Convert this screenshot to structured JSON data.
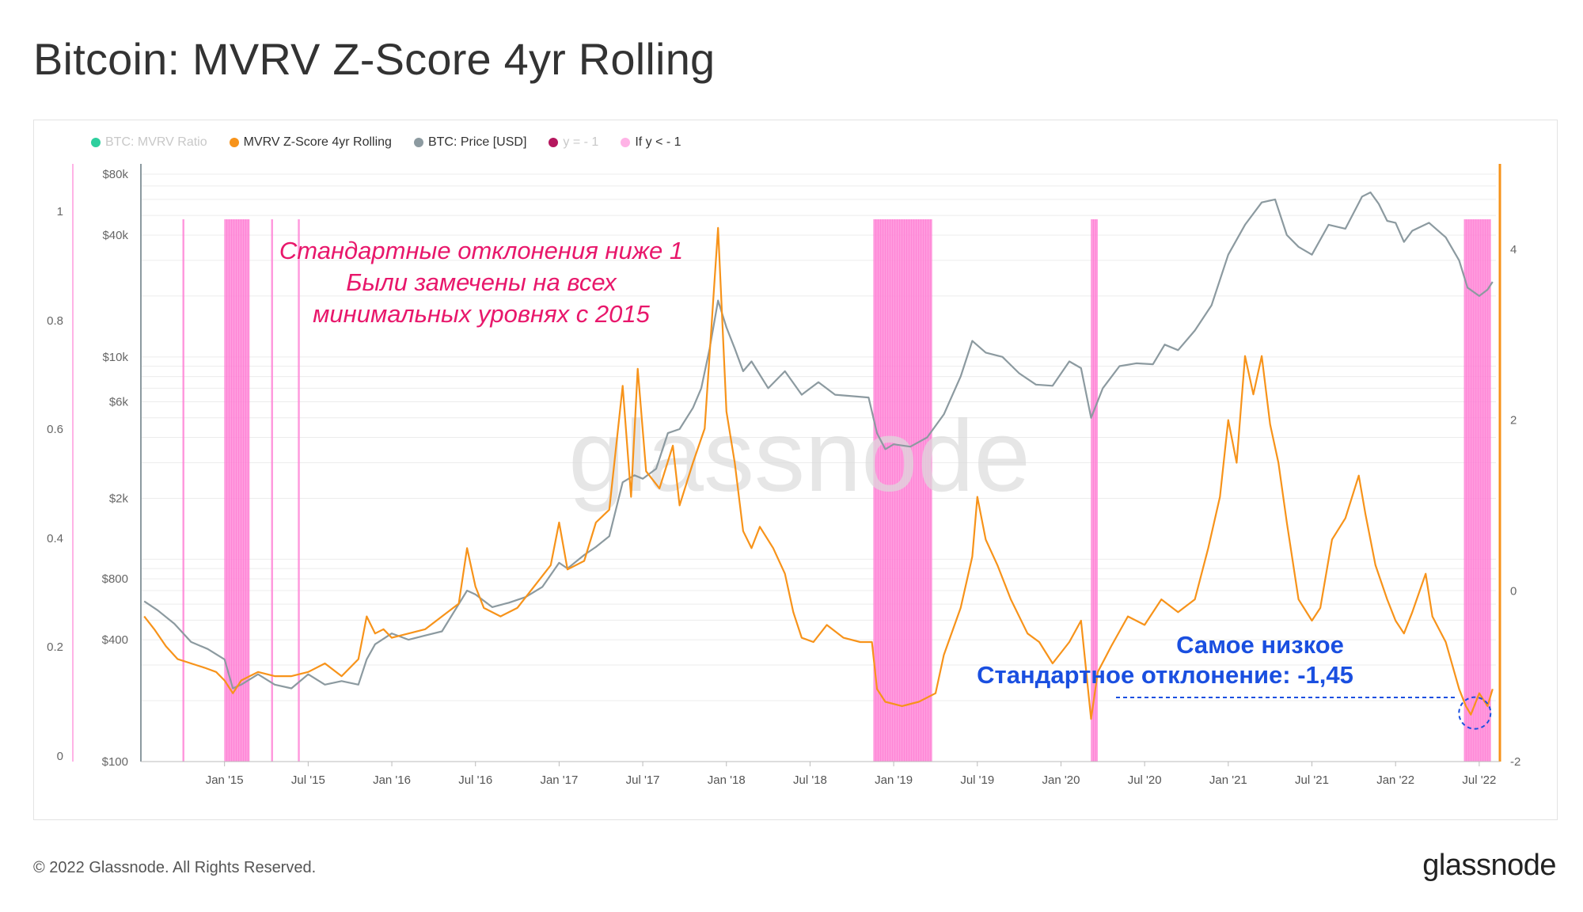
{
  "title": "Bitcoin: MVRV Z-Score 4yr Rolling",
  "footer": {
    "copyright": "© 2022 Glassnode. All Rights Reserved.",
    "logo": "glassnode"
  },
  "legend": [
    {
      "label": "BTC: MVRV Ratio",
      "color": "#2ecf9e",
      "dimmed": true
    },
    {
      "label": "MVRV Z-Score 4yr Rolling",
      "color": "#f7931a",
      "dimmed": false
    },
    {
      "label": "BTC: Price [USD]",
      "color": "#8c9aa0",
      "dimmed": false
    },
    {
      "label": "y = - 1",
      "color": "#b5175e",
      "dimmed": true
    },
    {
      "label": "If y < - 1",
      "color": "#ffb3e6",
      "dimmed": false
    }
  ],
  "watermark": "glassnode",
  "annotations": {
    "note_lines": [
      "Стандартные отклонения ниже 1",
      "Были замечены на всех",
      "минимальных уровнях с 2015"
    ],
    "note_color": "#e8176b",
    "lowest_lines": [
      "Самое низкое",
      "Стандартное отклонение: -1,45"
    ],
    "lowest_color": "#1a4fe0"
  },
  "chart_data": {
    "type": "line",
    "x_tick_labels": [
      "Jan '15",
      "Jul '15",
      "Jan '16",
      "Jul '16",
      "Jan '17",
      "Jul '17",
      "Jan '18",
      "Jul '18",
      "Jan '19",
      "Jul '19",
      "Jan '20",
      "Jul '20",
      "Jan '21",
      "Jul '21",
      "Jan '22",
      "Jul '22"
    ],
    "x_range": [
      2014.5,
      2022.6
    ],
    "left_axis_label_values": [
      "0",
      "0.2",
      "0.4",
      "0.6",
      "0.8",
      "1"
    ],
    "price_axis": {
      "scale": "log",
      "range": [
        100,
        80000
      ],
      "tick_labels": [
        "$100",
        "$400",
        "$800",
        "$2k",
        "$6k",
        "$10k",
        "$40k",
        "$80k"
      ],
      "tick_values": [
        100,
        400,
        800,
        2000,
        6000,
        10000,
        40000,
        80000
      ]
    },
    "zscore_axis": {
      "range": [
        -2,
        5
      ],
      "tick_labels": [
        "-2",
        "0",
        "2",
        "4"
      ],
      "tick_values": [
        -2,
        0,
        2,
        4
      ]
    },
    "series": [
      {
        "name": "MVRV Z-Score 4yr Rolling",
        "color": "#f7931a",
        "axis": "right",
        "points": [
          [
            2014.52,
            -0.3
          ],
          [
            2014.58,
            -0.45
          ],
          [
            2014.65,
            -0.65
          ],
          [
            2014.72,
            -0.8
          ],
          [
            2014.8,
            -0.85
          ],
          [
            2014.88,
            -0.9
          ],
          [
            2014.95,
            -0.95
          ],
          [
            2015.0,
            -1.05
          ],
          [
            2015.05,
            -1.2
          ],
          [
            2015.1,
            -1.05
          ],
          [
            2015.15,
            -1.0
          ],
          [
            2015.2,
            -0.95
          ],
          [
            2015.3,
            -1.0
          ],
          [
            2015.4,
            -1.0
          ],
          [
            2015.5,
            -0.95
          ],
          [
            2015.6,
            -0.85
          ],
          [
            2015.7,
            -1.0
          ],
          [
            2015.8,
            -0.8
          ],
          [
            2015.85,
            -0.3
          ],
          [
            2015.9,
            -0.5
          ],
          [
            2015.95,
            -0.45
          ],
          [
            2016.0,
            -0.55
          ],
          [
            2016.1,
            -0.5
          ],
          [
            2016.2,
            -0.45
          ],
          [
            2016.3,
            -0.3
          ],
          [
            2016.4,
            -0.15
          ],
          [
            2016.45,
            0.5
          ],
          [
            2016.5,
            0.05
          ],
          [
            2016.55,
            -0.2
          ],
          [
            2016.65,
            -0.3
          ],
          [
            2016.75,
            -0.2
          ],
          [
            2016.85,
            0.05
          ],
          [
            2016.95,
            0.3
          ],
          [
            2017.0,
            0.8
          ],
          [
            2017.05,
            0.25
          ],
          [
            2017.15,
            0.35
          ],
          [
            2017.22,
            0.8
          ],
          [
            2017.3,
            0.95
          ],
          [
            2017.38,
            2.4
          ],
          [
            2017.43,
            1.1
          ],
          [
            2017.47,
            2.6
          ],
          [
            2017.52,
            1.4
          ],
          [
            2017.6,
            1.2
          ],
          [
            2017.68,
            1.7
          ],
          [
            2017.72,
            1.0
          ],
          [
            2017.8,
            1.5
          ],
          [
            2017.87,
            1.9
          ],
          [
            2017.95,
            4.25
          ],
          [
            2018.0,
            2.1
          ],
          [
            2018.05,
            1.5
          ],
          [
            2018.1,
            0.7
          ],
          [
            2018.15,
            0.5
          ],
          [
            2018.2,
            0.75
          ],
          [
            2018.28,
            0.5
          ],
          [
            2018.35,
            0.2
          ],
          [
            2018.4,
            -0.25
          ],
          [
            2018.45,
            -0.55
          ],
          [
            2018.52,
            -0.6
          ],
          [
            2018.6,
            -0.4
          ],
          [
            2018.7,
            -0.55
          ],
          [
            2018.8,
            -0.6
          ],
          [
            2018.87,
            -0.6
          ],
          [
            2018.9,
            -1.15
          ],
          [
            2018.95,
            -1.3
          ],
          [
            2019.05,
            -1.35
          ],
          [
            2019.15,
            -1.3
          ],
          [
            2019.25,
            -1.2
          ],
          [
            2019.3,
            -0.75
          ],
          [
            2019.4,
            -0.2
          ],
          [
            2019.47,
            0.4
          ],
          [
            2019.5,
            1.1
          ],
          [
            2019.55,
            0.6
          ],
          [
            2019.62,
            0.3
          ],
          [
            2019.7,
            -0.1
          ],
          [
            2019.8,
            -0.5
          ],
          [
            2019.87,
            -0.6
          ],
          [
            2019.95,
            -0.85
          ],
          [
            2020.05,
            -0.6
          ],
          [
            2020.12,
            -0.35
          ],
          [
            2020.18,
            -1.5
          ],
          [
            2020.22,
            -0.95
          ],
          [
            2020.3,
            -0.65
          ],
          [
            2020.4,
            -0.3
          ],
          [
            2020.5,
            -0.4
          ],
          [
            2020.6,
            -0.1
          ],
          [
            2020.7,
            -0.25
          ],
          [
            2020.8,
            -0.1
          ],
          [
            2020.88,
            0.5
          ],
          [
            2020.95,
            1.1
          ],
          [
            2021.0,
            2.0
          ],
          [
            2021.05,
            1.5
          ],
          [
            2021.1,
            2.75
          ],
          [
            2021.15,
            2.3
          ],
          [
            2021.2,
            2.75
          ],
          [
            2021.25,
            1.95
          ],
          [
            2021.3,
            1.5
          ],
          [
            2021.35,
            0.8
          ],
          [
            2021.42,
            -0.1
          ],
          [
            2021.5,
            -0.35
          ],
          [
            2021.55,
            -0.2
          ],
          [
            2021.62,
            0.6
          ],
          [
            2021.7,
            0.85
          ],
          [
            2021.78,
            1.35
          ],
          [
            2021.82,
            0.9
          ],
          [
            2021.88,
            0.3
          ],
          [
            2021.95,
            -0.1
          ],
          [
            2022.0,
            -0.35
          ],
          [
            2022.05,
            -0.5
          ],
          [
            2022.1,
            -0.25
          ],
          [
            2022.18,
            0.2
          ],
          [
            2022.22,
            -0.3
          ],
          [
            2022.3,
            -0.6
          ],
          [
            2022.38,
            -1.15
          ],
          [
            2022.42,
            -1.35
          ],
          [
            2022.45,
            -1.45
          ],
          [
            2022.5,
            -1.2
          ],
          [
            2022.55,
            -1.35
          ],
          [
            2022.58,
            -1.15
          ]
        ]
      },
      {
        "name": "BTC: Price [USD]",
        "color": "#8c9aa0",
        "axis": "price",
        "points": [
          [
            2014.52,
            620
          ],
          [
            2014.6,
            560
          ],
          [
            2014.7,
            480
          ],
          [
            2014.8,
            390
          ],
          [
            2014.9,
            360
          ],
          [
            2015.0,
            320
          ],
          [
            2015.05,
            230
          ],
          [
            2015.1,
            240
          ],
          [
            2015.2,
            270
          ],
          [
            2015.3,
            240
          ],
          [
            2015.4,
            230
          ],
          [
            2015.5,
            270
          ],
          [
            2015.6,
            240
          ],
          [
            2015.7,
            250
          ],
          [
            2015.8,
            240
          ],
          [
            2015.85,
            320
          ],
          [
            2015.9,
            380
          ],
          [
            2016.0,
            430
          ],
          [
            2016.1,
            400
          ],
          [
            2016.2,
            420
          ],
          [
            2016.3,
            440
          ],
          [
            2016.45,
            700
          ],
          [
            2016.5,
            670
          ],
          [
            2016.6,
            580
          ],
          [
            2016.7,
            610
          ],
          [
            2016.8,
            650
          ],
          [
            2016.9,
            730
          ],
          [
            2017.0,
            960
          ],
          [
            2017.05,
            900
          ],
          [
            2017.15,
            1050
          ],
          [
            2017.22,
            1150
          ],
          [
            2017.3,
            1300
          ],
          [
            2017.38,
            2400
          ],
          [
            2017.45,
            2600
          ],
          [
            2017.5,
            2500
          ],
          [
            2017.58,
            2800
          ],
          [
            2017.65,
            4200
          ],
          [
            2017.72,
            4400
          ],
          [
            2017.8,
            5600
          ],
          [
            2017.85,
            7000
          ],
          [
            2017.9,
            11000
          ],
          [
            2017.95,
            19000
          ],
          [
            2018.0,
            14000
          ],
          [
            2018.05,
            11000
          ],
          [
            2018.1,
            8500
          ],
          [
            2018.15,
            9500
          ],
          [
            2018.25,
            7000
          ],
          [
            2018.35,
            8500
          ],
          [
            2018.45,
            6500
          ],
          [
            2018.55,
            7500
          ],
          [
            2018.65,
            6500
          ],
          [
            2018.75,
            6400
          ],
          [
            2018.85,
            6300
          ],
          [
            2018.9,
            4200
          ],
          [
            2018.95,
            3500
          ],
          [
            2019.0,
            3700
          ],
          [
            2019.1,
            3600
          ],
          [
            2019.2,
            4000
          ],
          [
            2019.3,
            5200
          ],
          [
            2019.4,
            8000
          ],
          [
            2019.47,
            12000
          ],
          [
            2019.55,
            10500
          ],
          [
            2019.65,
            10000
          ],
          [
            2019.75,
            8300
          ],
          [
            2019.85,
            7300
          ],
          [
            2019.95,
            7200
          ],
          [
            2020.05,
            9500
          ],
          [
            2020.12,
            8800
          ],
          [
            2020.18,
            5000
          ],
          [
            2020.25,
            7000
          ],
          [
            2020.35,
            9000
          ],
          [
            2020.45,
            9300
          ],
          [
            2020.55,
            9200
          ],
          [
            2020.62,
            11500
          ],
          [
            2020.7,
            10800
          ],
          [
            2020.8,
            13500
          ],
          [
            2020.9,
            18000
          ],
          [
            2021.0,
            32000
          ],
          [
            2021.1,
            45000
          ],
          [
            2021.2,
            58000
          ],
          [
            2021.28,
            60000
          ],
          [
            2021.35,
            40000
          ],
          [
            2021.42,
            35000
          ],
          [
            2021.5,
            32000
          ],
          [
            2021.6,
            45000
          ],
          [
            2021.7,
            43000
          ],
          [
            2021.8,
            62000
          ],
          [
            2021.85,
            65000
          ],
          [
            2021.9,
            57000
          ],
          [
            2021.95,
            47000
          ],
          [
            2022.0,
            46000
          ],
          [
            2022.05,
            37000
          ],
          [
            2022.1,
            42000
          ],
          [
            2022.2,
            46000
          ],
          [
            2022.3,
            39000
          ],
          [
            2022.38,
            30000
          ],
          [
            2022.43,
            22000
          ],
          [
            2022.5,
            20000
          ],
          [
            2022.55,
            21500
          ],
          [
            2022.58,
            23500
          ]
        ]
      }
    ],
    "highlight_periods": [
      [
        2014.75,
        2014.76
      ],
      [
        2015.0,
        2015.15
      ],
      [
        2015.28,
        2015.29
      ],
      [
        2015.44,
        2015.45
      ],
      [
        2018.88,
        2019.23
      ],
      [
        2020.18,
        2020.22
      ],
      [
        2022.41,
        2022.57
      ]
    ],
    "highlight_color": "#ff8ad8",
    "lowest_value_label": "-1,45"
  }
}
